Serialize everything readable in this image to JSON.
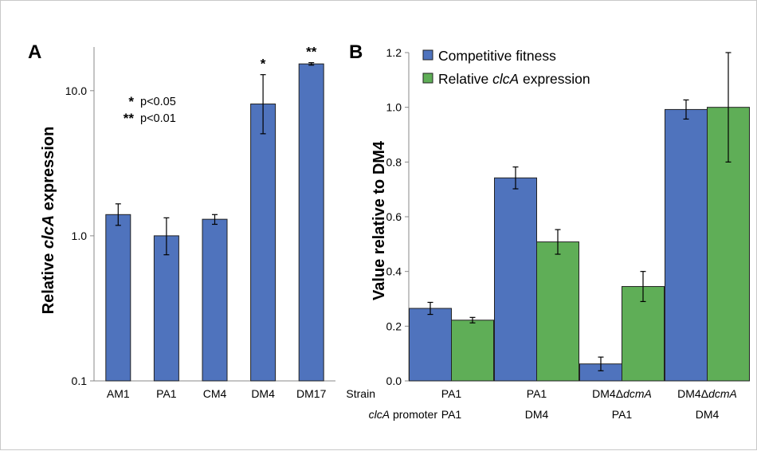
{
  "colors": {
    "blue": "#4f73bd",
    "green": "#5fae57",
    "axis": "#888888",
    "border": "#c8c8c8"
  },
  "chart_data": [
    {
      "panel": "A",
      "type": "bar",
      "yscale": "log",
      "ylabel_parts": [
        "Relative ",
        "clcA",
        " expression"
      ],
      "ylim": [
        0.1,
        20
      ],
      "yticks": [
        0.1,
        1.0,
        10.0
      ],
      "ytick_labels": [
        "0.1",
        "1.0",
        "10.0"
      ],
      "categories": [
        "AM1",
        "PA1",
        "CM4",
        "DM4",
        "DM17"
      ],
      "values": [
        1.4,
        1.0,
        1.3,
        8.1,
        15.3
      ],
      "errors": [
        [
          1.18,
          1.66
        ],
        [
          0.74,
          1.33
        ],
        [
          1.2,
          1.4
        ],
        [
          5.05,
          12.9
        ],
        [
          15.0,
          15.6
        ]
      ],
      "significance": [
        "",
        "",
        "",
        "*",
        "**"
      ],
      "notes": [
        {
          "sym": "*",
          "text": "p<0.05"
        },
        {
          "sym": "**",
          "text": "p<0.01"
        }
      ]
    },
    {
      "panel": "B",
      "type": "bar",
      "ylabel": "Value relative to DM4",
      "ylim": [
        0,
        1.2
      ],
      "yticks": [
        0,
        0.2,
        0.4,
        0.6,
        0.8,
        1.0,
        1.2
      ],
      "ytick_labels": [
        "0.0",
        "0.2",
        "0.4",
        "0.6",
        "0.8",
        "1.0",
        "1.2"
      ],
      "series": [
        {
          "name": "Competitive fitness",
          "values": [
            0.265,
            0.742,
            0.062,
            0.992
          ],
          "errors": [
            0.022,
            0.04,
            0.025,
            0.035
          ]
        },
        {
          "name_parts": [
            "Relative ",
            "clcA",
            " expression"
          ],
          "values": [
            0.222,
            0.508,
            0.345,
            1.0
          ],
          "errors": [
            0.01,
            0.045,
            0.055,
            0.2
          ]
        }
      ],
      "strain_label": "Strain",
      "promoter_label_parts": [
        "clcA",
        " promoter"
      ],
      "strains": [
        {
          "parts": [
            "PA1"
          ]
        },
        {
          "parts": [
            "PA1"
          ]
        },
        {
          "parts": [
            "DM4Δ",
            "dcmA"
          ]
        },
        {
          "parts": [
            "DM4Δ",
            "dcmA"
          ]
        }
      ],
      "promoters": [
        "PA1",
        "DM4",
        "PA1",
        "DM4"
      ]
    }
  ]
}
